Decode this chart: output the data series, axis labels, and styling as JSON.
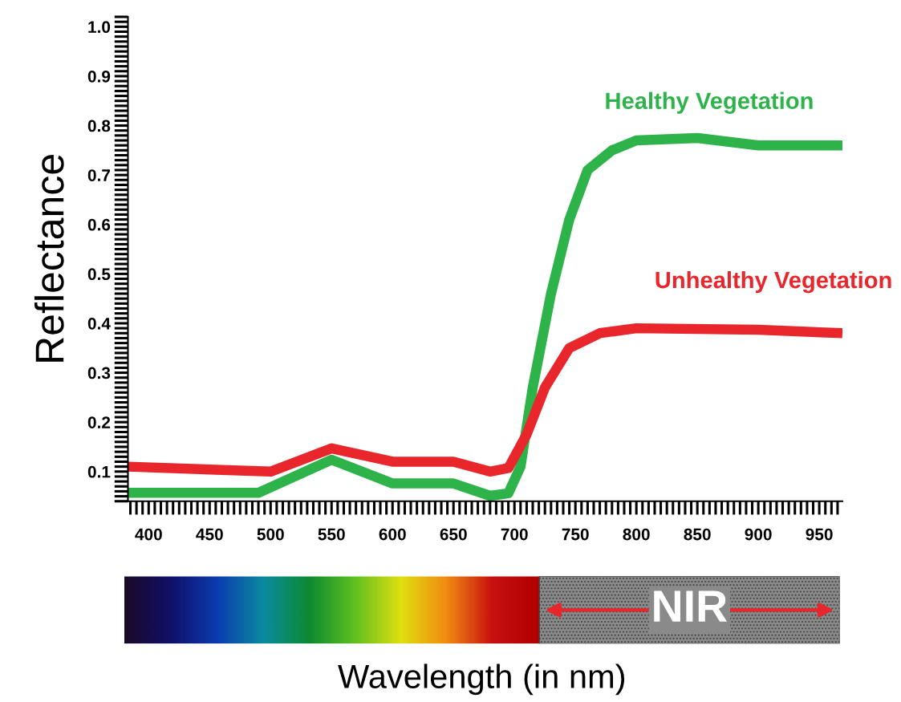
{
  "chart_data": {
    "type": "line",
    "xlabel": "Wavelength (in nm)",
    "ylabel": "Reflectance",
    "x": [
      383,
      490,
      550,
      600,
      650,
      680,
      695,
      705,
      715,
      730,
      745,
      760,
      780,
      800,
      850,
      900,
      969
    ],
    "series": [
      {
        "name": "Healthy Vegetation",
        "color": "#2eb34a",
        "values": [
          0.057,
          0.057,
          0.124,
          0.076,
          0.076,
          0.051,
          0.056,
          0.11,
          0.27,
          0.46,
          0.61,
          0.71,
          0.75,
          0.77,
          0.775,
          0.76,
          0.76
        ]
      },
      {
        "name": "Unhealthy Vegetation",
        "color": "#e8262b",
        "x": [
          383,
          500,
          550,
          600,
          650,
          680,
          695,
          710,
          725,
          745,
          770,
          800,
          900,
          969
        ],
        "values": [
          0.11,
          0.1,
          0.147,
          0.12,
          0.12,
          0.1,
          0.107,
          0.175,
          0.27,
          0.35,
          0.38,
          0.39,
          0.387,
          0.38
        ]
      }
    ],
    "xlim": [
      383,
      969
    ],
    "ylim": [
      0.04,
      1.02
    ],
    "xticks": [
      400,
      450,
      500,
      550,
      600,
      650,
      700,
      750,
      800,
      850,
      900,
      950
    ],
    "yticks": [
      0.1,
      0.2,
      0.3,
      0.4,
      0.5,
      0.6,
      0.7,
      0.8,
      0.9,
      {
        "value": 1.0,
        "label": "1.0"
      }
    ],
    "annotations": [
      "NIR"
    ],
    "grid": false,
    "legend": false,
    "marker": "none",
    "line_style": "solid"
  }
}
